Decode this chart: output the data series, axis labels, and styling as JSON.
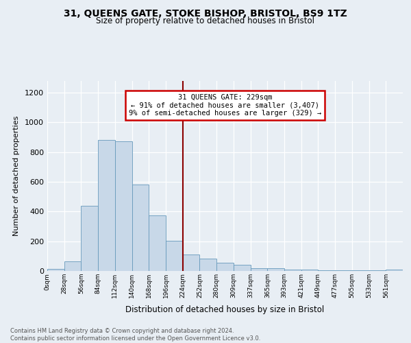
{
  "title1": "31, QUEENS GATE, STOKE BISHOP, BRISTOL, BS9 1TZ",
  "title2": "Size of property relative to detached houses in Bristol",
  "xlabel": "Distribution of detached houses by size in Bristol",
  "ylabel": "Number of detached properties",
  "footnote": "Contains HM Land Registry data © Crown copyright and database right 2024.\nContains public sector information licensed under the Open Government Licence v3.0.",
  "bin_labels": [
    "0sqm",
    "28sqm",
    "56sqm",
    "84sqm",
    "112sqm",
    "140sqm",
    "168sqm",
    "196sqm",
    "224sqm",
    "252sqm",
    "280sqm",
    "309sqm",
    "337sqm",
    "365sqm",
    "393sqm",
    "421sqm",
    "449sqm",
    "477sqm",
    "505sqm",
    "533sqm",
    "561sqm"
  ],
  "bar_heights": [
    12,
    65,
    440,
    880,
    870,
    580,
    375,
    205,
    110,
    82,
    55,
    42,
    20,
    17,
    10,
    8,
    6,
    4,
    4,
    4,
    10
  ],
  "bar_color": "#c8d8e8",
  "bar_edge_color": "#6699bb",
  "vline_x": 8,
  "vline_color": "#8b0000",
  "annotation_title": "31 QUEENS GATE: 229sqm",
  "annotation_line1": "← 91% of detached houses are smaller (3,407)",
  "annotation_line2": "9% of semi-detached houses are larger (329) →",
  "annotation_box_color": "#ffffff",
  "annotation_box_edge": "#cc0000",
  "ylim": [
    0,
    1280
  ],
  "yticks": [
    0,
    200,
    400,
    600,
    800,
    1000,
    1200
  ],
  "background_color": "#e8eef4",
  "plot_background": "#e8eef4"
}
